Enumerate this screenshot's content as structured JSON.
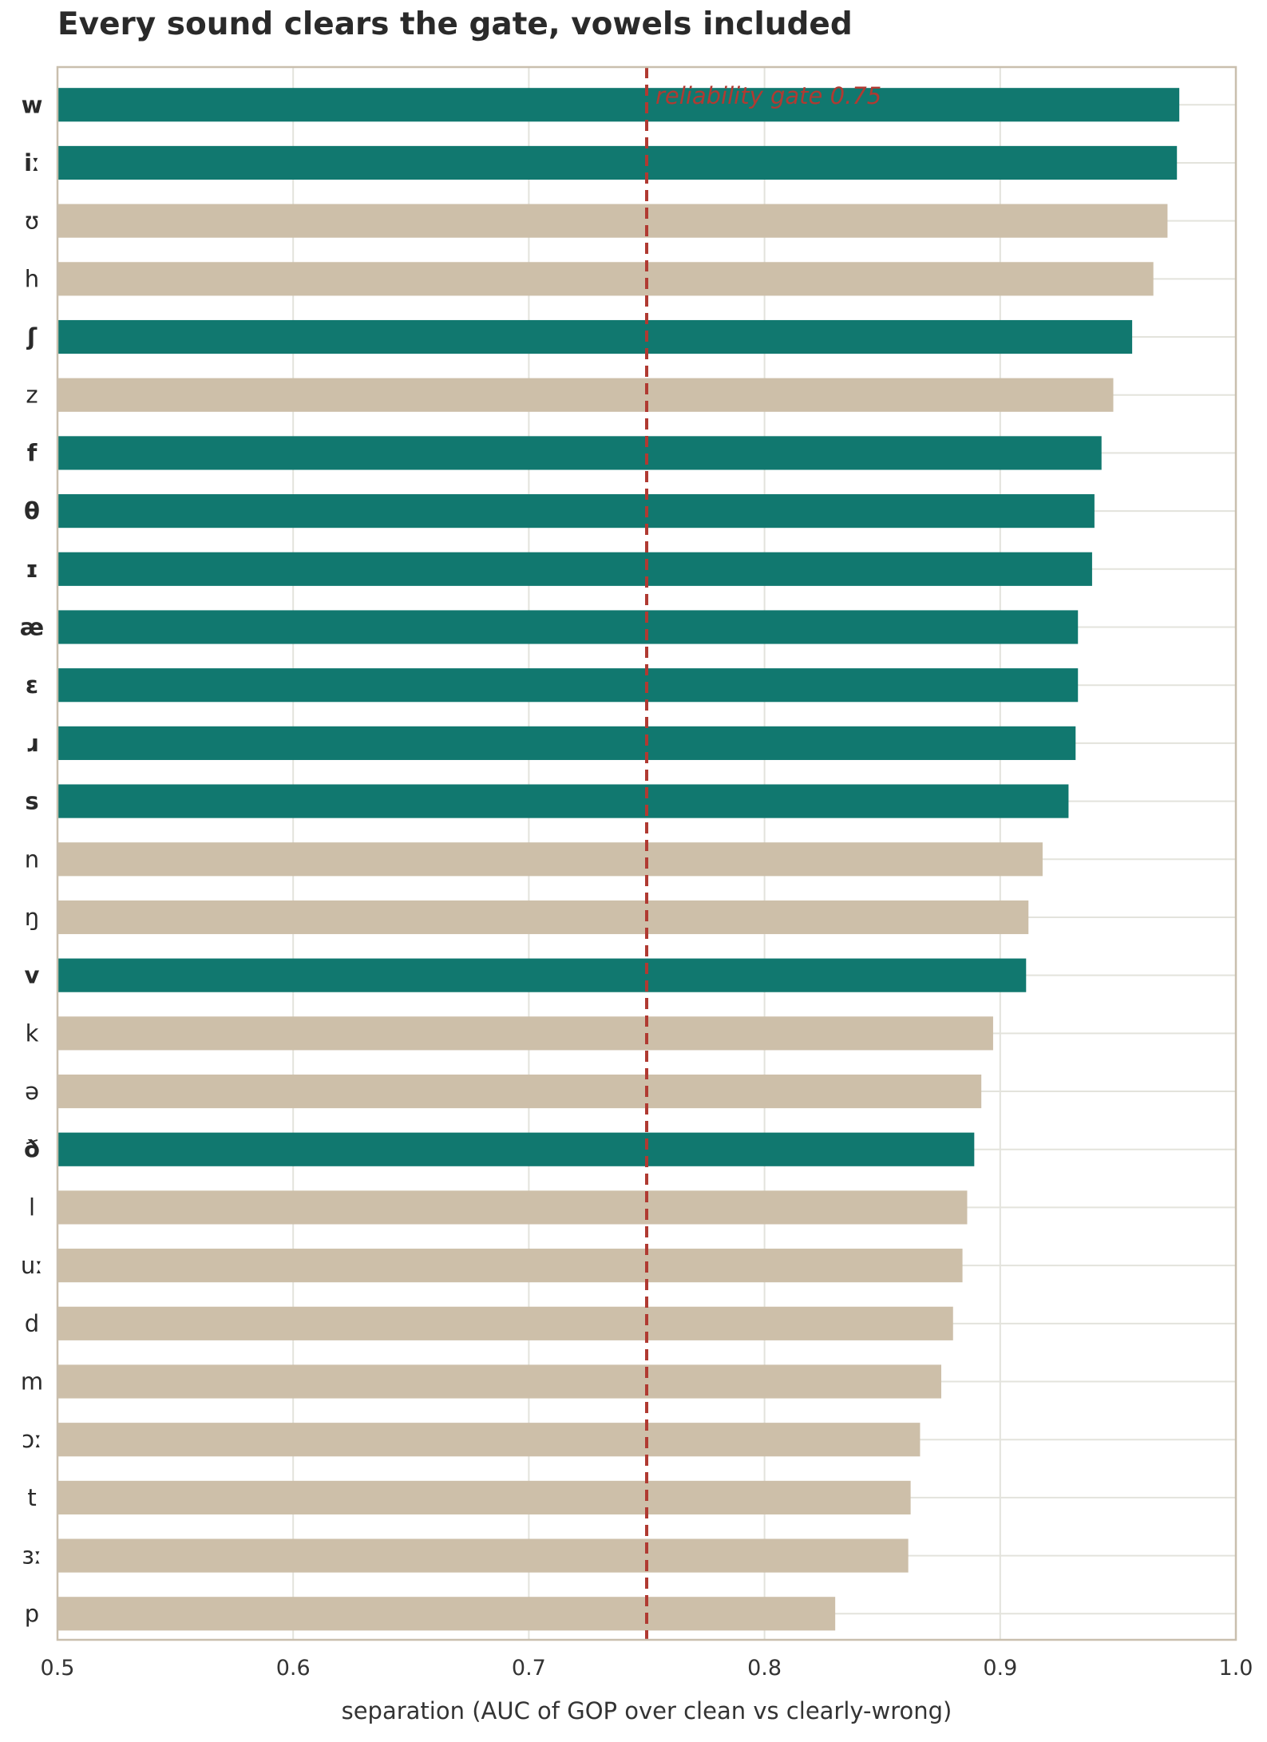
{
  "title": "Every sound clears the gate, vowels included",
  "chart_data": {
    "type": "bar",
    "orientation": "horizontal",
    "title": "Every sound clears the gate, vowels included",
    "xlabel": "separation  (AUC of GOP over clean vs clearly-wrong)",
    "ylabel": "",
    "xlim": [
      0.5,
      1.0
    ],
    "xticks": [
      "0.5",
      "0.6",
      "0.7",
      "0.8",
      "0.9",
      "1.0"
    ],
    "grid": true,
    "categories": [
      "w",
      "iː",
      "ʊ",
      "h",
      "ʃ",
      "z",
      "f",
      "θ",
      "ɪ",
      "æ",
      "ɛ",
      "ɹ",
      "s",
      "n",
      "ŋ",
      "v",
      "k",
      "ə",
      "ð",
      "l",
      "uː",
      "d",
      "m",
      "ɔː",
      "t",
      "ɜː",
      "p"
    ],
    "values": [
      0.976,
      0.975,
      0.971,
      0.965,
      0.956,
      0.948,
      0.943,
      0.94,
      0.939,
      0.933,
      0.933,
      0.932,
      0.929,
      0.918,
      0.912,
      0.911,
      0.897,
      0.892,
      0.889,
      0.886,
      0.884,
      0.88,
      0.875,
      0.866,
      0.862,
      0.861,
      0.83
    ],
    "highlighted": [
      true,
      true,
      false,
      false,
      true,
      false,
      true,
      true,
      true,
      true,
      true,
      true,
      true,
      false,
      false,
      true,
      false,
      false,
      true,
      false,
      false,
      false,
      false,
      false,
      false,
      false,
      false
    ],
    "reference_line": {
      "value": 0.75,
      "label": "reliability gate 0.75"
    },
    "colors": {
      "highlight": "#11786f",
      "other": "#cdbfa9",
      "reference": "#b03a32",
      "grid": "#e3e3dc",
      "frame": "#c9bfae"
    }
  }
}
